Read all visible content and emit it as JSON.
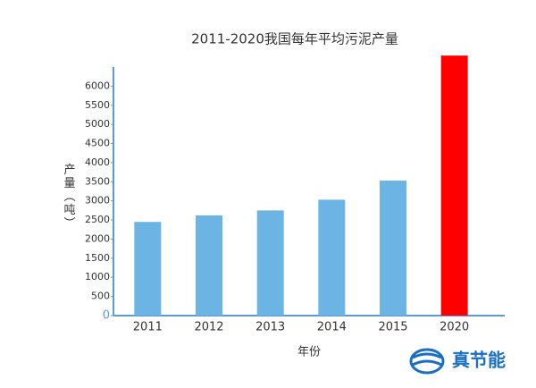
{
  "chart_data": {
    "type": "bar",
    "title": "2011-2020我国每年平均污泥产量",
    "x_label": "年份",
    "y_label": "产量（吨）",
    "categories": [
      "2011",
      "2012",
      "2013",
      "2014",
      "2015",
      "2020"
    ],
    "values": [
      2450,
      2620,
      2750,
      3030,
      3530,
      6800
    ],
    "colors": [
      "#6cb4e4",
      "#6cb4e4",
      "#6cb4e4",
      "#6cb4e4",
      "#6cb4e4",
      "#ff0000"
    ],
    "ylim": [
      0,
      6500
    ],
    "yticks": [
      0,
      500,
      1000,
      1500,
      2000,
      2500,
      3000,
      3500,
      4000,
      4500,
      5000,
      5500,
      6000
    ],
    "grid": false,
    "watermark": "真节能"
  }
}
